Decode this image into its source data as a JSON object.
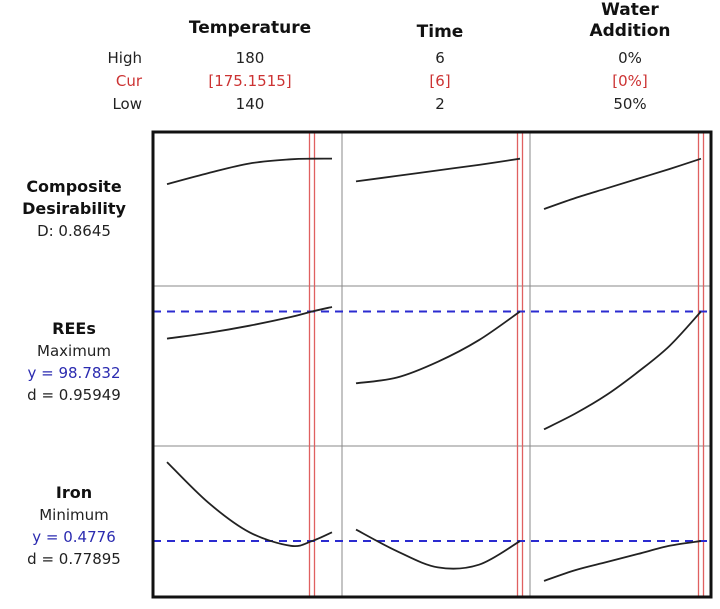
{
  "settings": {
    "high_label": "High",
    "cur_label": "Cur",
    "low_label": "Low"
  },
  "factors": [
    {
      "name_line1": "Temperature",
      "name_line2": "",
      "high": "180",
      "cur": "[175.1515]",
      "low": "140"
    },
    {
      "name_line1": "Time",
      "name_line2": "",
      "high": "6",
      "cur": "[6]",
      "low": "2"
    },
    {
      "name_line1": "Water",
      "name_line2": "Addition",
      "high": "0%",
      "cur": "[0%]",
      "low": "50%"
    }
  ],
  "responses": [
    {
      "name_line1": "Composite",
      "name_line2": "Desirability",
      "goal": "",
      "y": "",
      "metric": "D: 0.8645"
    },
    {
      "name_line1": "REEs",
      "name_line2": "",
      "goal": "Maximum",
      "y": "y = 98.7832",
      "metric": "d = 0.95949"
    },
    {
      "name_line1": "Iron",
      "name_line2": "",
      "goal": "Minimum",
      "y": "y = 0.4776",
      "metric": "d = 0.77895"
    }
  ],
  "colors": {
    "curve": "#222222",
    "current_line": "#e06060",
    "target_line": "#2b2bd0",
    "frame": "#111111",
    "divider": "#888888"
  },
  "chart_data": {
    "type": "line",
    "title": "",
    "current_settings": {
      "Temperature": 175.1515,
      "Time": 6,
      "Water Addition": 0
    },
    "factor_ranges": {
      "Temperature": [
        140,
        180
      ],
      "Time": [
        2,
        6
      ],
      "Water Addition": [
        50,
        0
      ]
    },
    "y_panel_ranges": {
      "Composite Desirability": [
        0,
        1
      ],
      "REEs": [
        90,
        100
      ],
      "Iron": [
        0.3,
        0.8
      ]
    },
    "targets": {
      "REEs": 98.7832,
      "Iron": 0.4776
    },
    "panels": [
      {
        "response": "Composite Desirability",
        "factor": "Temperature",
        "x": [
          140,
          150,
          160,
          170,
          175.1515,
          180
        ],
        "y": [
          0.68,
          0.76,
          0.83,
          0.86,
          0.8645,
          0.865
        ]
      },
      {
        "response": "Composite Desirability",
        "factor": "Time",
        "x": [
          2,
          3,
          4,
          5,
          6
        ],
        "y": [
          0.7,
          0.74,
          0.78,
          0.82,
          0.8645
        ]
      },
      {
        "response": "Composite Desirability",
        "factor": "Water Addition",
        "x": [
          0,
          10,
          20,
          30,
          40,
          50
        ],
        "y": [
          0.8645,
          0.79,
          0.72,
          0.65,
          0.58,
          0.5
        ]
      },
      {
        "response": "REEs",
        "factor": "Temperature",
        "x": [
          140,
          150,
          160,
          170,
          175.1515,
          180
        ],
        "y": [
          96.9,
          97.3,
          97.8,
          98.4,
          98.7832,
          99.1
        ]
      },
      {
        "response": "REEs",
        "factor": "Time",
        "x": [
          2,
          3,
          4,
          5,
          6
        ],
        "y": [
          93.8,
          94.2,
          95.3,
          96.8,
          98.7832
        ]
      },
      {
        "response": "REEs",
        "factor": "Water Addition",
        "x": [
          0,
          10,
          20,
          30,
          40,
          50
        ],
        "y": [
          98.7832,
          96.4,
          94.6,
          93.0,
          91.7,
          90.6
        ]
      },
      {
        "response": "Iron",
        "factor": "Temperature",
        "x": [
          140,
          150,
          160,
          170,
          175.1515,
          180
        ],
        "y": [
          0.77,
          0.62,
          0.51,
          0.46,
          0.4776,
          0.51
        ]
      },
      {
        "response": "Iron",
        "factor": "Time",
        "x": [
          2,
          3,
          4,
          5,
          6
        ],
        "y": [
          0.52,
          0.44,
          0.38,
          0.39,
          0.4776
        ]
      },
      {
        "response": "Iron",
        "factor": "Water Addition",
        "x": [
          0,
          10,
          20,
          30,
          40,
          50
        ],
        "y": [
          0.4776,
          0.46,
          0.43,
          0.4,
          0.37,
          0.33
        ]
      }
    ]
  }
}
